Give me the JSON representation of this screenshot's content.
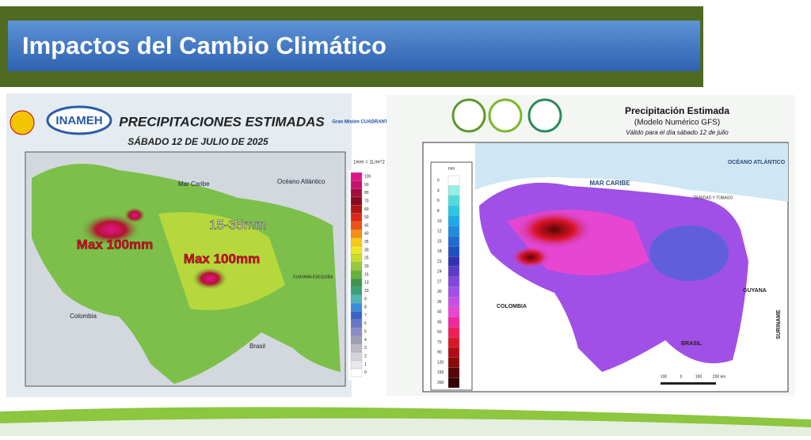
{
  "slide_title": "Impactos del Cambio Climático",
  "left_map": {
    "agency": "INAMEH",
    "title": "PRECIPITACIONES ESTIMADAS",
    "date": "SÁBADO 12 DE JULIO DE 2025",
    "logo_text": "Gran Misión CUADRANTES DE PAZ",
    "unit_note": "1mm = 1L/m^2",
    "labels": [
      "Mar Caribe",
      "Océano Atlántico",
      "15-35mm",
      "Max 100mm",
      "Max 100mm",
      "Colombia",
      "Brasil",
      "GUAYANA ESEQUIBA"
    ],
    "legend": [
      {
        "label": "100",
        "color": "#e0148c"
      },
      {
        "label": "90",
        "color": "#c8106e"
      },
      {
        "label": "80",
        "color": "#a80c3c"
      },
      {
        "label": "70",
        "color": "#8c0a1e"
      },
      {
        "label": "60",
        "color": "#b41414"
      },
      {
        "label": "50",
        "color": "#dc2814"
      },
      {
        "label": "45",
        "color": "#f05014"
      },
      {
        "label": "40",
        "color": "#f88c14"
      },
      {
        "label": "35",
        "color": "#fcc814"
      },
      {
        "label": "30",
        "color": "#f0e628"
      },
      {
        "label": "25",
        "color": "#c8dc28"
      },
      {
        "label": "20",
        "color": "#96c83c"
      },
      {
        "label": "15",
        "color": "#64b43c"
      },
      {
        "label": "13",
        "color": "#3c9650"
      },
      {
        "label": "10",
        "color": "#3ca078"
      },
      {
        "label": "9",
        "color": "#50b4b4"
      },
      {
        "label": "8",
        "color": "#3c8cdc"
      },
      {
        "label": "7",
        "color": "#3c64c8"
      },
      {
        "label": "6",
        "color": "#6478c8"
      },
      {
        "label": "5",
        "color": "#8c8cc8"
      },
      {
        "label": "4",
        "color": "#a0a0b4"
      },
      {
        "label": "3",
        "color": "#bcbcc8"
      },
      {
        "label": "2",
        "color": "#d4d4dc"
      },
      {
        "label": "1",
        "color": "#e8e8ec"
      },
      {
        "label": "0",
        "color": "#ffffff"
      }
    ]
  },
  "right_map": {
    "title": "Precipitación Estimada",
    "subtitle": "(Modelo Numérico GFS)",
    "valid": "Válido para el día sábado 12 de julio",
    "labels": [
      "MAR CARIBE",
      "OCÉANO ATLÁNTICO",
      "TRINIDAD Y TOBAGO",
      "COLOMBIA",
      "GUYANA",
      "SURINAME",
      "BRASIL"
    ],
    "scale": [
      "100",
      "0",
      "100",
      "200 km"
    ],
    "legend_unit": "mm",
    "legend": [
      {
        "label": "0",
        "color": "#ffffff"
      },
      {
        "label": "4",
        "color": "#96f0e6"
      },
      {
        "label": "6",
        "color": "#50dcdc"
      },
      {
        "label": "8",
        "color": "#28c8e6"
      },
      {
        "label": "10",
        "color": "#1eaae6"
      },
      {
        "label": "12",
        "color": "#1e8cdc"
      },
      {
        "label": "15",
        "color": "#1e6ed2"
      },
      {
        "label": "18",
        "color": "#1e50be"
      },
      {
        "label": "21",
        "color": "#3232b4"
      },
      {
        "label": "24",
        "color": "#5a3cc8"
      },
      {
        "label": "27",
        "color": "#8246dc"
      },
      {
        "label": "30",
        "color": "#a050e6"
      },
      {
        "label": "35",
        "color": "#c850e6"
      },
      {
        "label": "40",
        "color": "#e646d2"
      },
      {
        "label": "45",
        "color": "#f0289b"
      },
      {
        "label": "50",
        "color": "#f01e5a"
      },
      {
        "label": "70",
        "color": "#dc1428"
      },
      {
        "label": "90",
        "color": "#b40a14"
      },
      {
        "label": "120",
        "color": "#8c0a0a"
      },
      {
        "label": "150",
        "color": "#5a0505"
      },
      {
        "label": "200",
        "color": "#320000"
      }
    ]
  }
}
